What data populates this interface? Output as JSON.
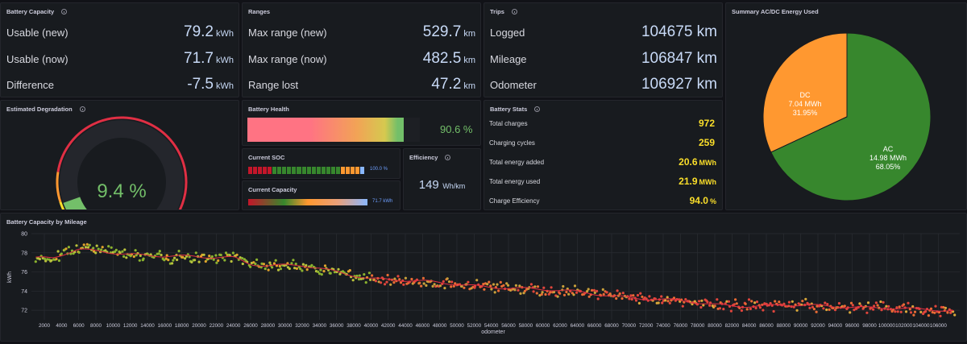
{
  "battery_capacity": {
    "title": "Battery Capacity",
    "rows": [
      {
        "label": "Usable (new)",
        "value": "79.2",
        "unit": "kWh"
      },
      {
        "label": "Usable (now)",
        "value": "71.7",
        "unit": "kWh"
      },
      {
        "label": "Difference",
        "value": "-7.5",
        "unit": "kWh"
      }
    ]
  },
  "ranges": {
    "title": "Ranges",
    "rows": [
      {
        "label": "Max range (new)",
        "value": "529.7",
        "unit": "km"
      },
      {
        "label": "Max range (now)",
        "value": "482.5",
        "unit": "km"
      },
      {
        "label": "Range lost",
        "value": "47.2",
        "unit": "km"
      }
    ]
  },
  "trips": {
    "title": "Trips",
    "rows": [
      {
        "label": "Logged",
        "value": "104675",
        "unit": "km"
      },
      {
        "label": "Mileage",
        "value": "106847",
        "unit": "km"
      },
      {
        "label": "Odometer",
        "value": "106927",
        "unit": "km"
      }
    ]
  },
  "summary": {
    "title": "Summary AC/DC Energy Used",
    "slices": [
      {
        "name": "DC",
        "energy": "7.04 MWh",
        "percent_label": "31.95%",
        "value": 31.95,
        "color": "#ff9830"
      },
      {
        "name": "AC",
        "energy": "14.98 MWh",
        "percent_label": "68.05%",
        "value": 68.05,
        "color": "#37872d"
      }
    ]
  },
  "degradation": {
    "title": "Estimated Degradation",
    "value_text": "9.4 %",
    "value": 9.4,
    "min": 0,
    "max": 100,
    "value_color": "#73bf69"
  },
  "battery_health": {
    "title": "Battery Health",
    "value_text": "90.6 %",
    "value": 90.6,
    "value_color": "#73bf69"
  },
  "current_soc": {
    "title": "Current SOC",
    "value_text": "100.0 %",
    "value": 100.0
  },
  "current_capacity": {
    "title": "Current Capacity",
    "value_text": "71.7 kWh",
    "value": 71.7
  },
  "efficiency": {
    "title": "Efficiency",
    "value": "149",
    "unit": "Wh/km"
  },
  "battery_stats": {
    "title": "Battery Stats",
    "rows": [
      {
        "label": "Total charges",
        "value": "972",
        "unit": ""
      },
      {
        "label": "Charging cycles",
        "value": "259",
        "unit": ""
      },
      {
        "label": "Total energy added",
        "value": "20.6",
        "unit": "MWh"
      },
      {
        "label": "Total energy used",
        "value": "21.9",
        "unit": "MWh"
      },
      {
        "label": "Charge Efficiency",
        "value": "94.0",
        "unit": "%"
      }
    ]
  },
  "chart_data": {
    "type": "scatter",
    "title": "Battery Capacity by Mileage",
    "xlabel": "odometer",
    "ylabel": "kWh",
    "xlim": [
      500,
      108500
    ],
    "ylim": [
      71,
      80
    ],
    "yticks": [
      72,
      74,
      76,
      78,
      80
    ],
    "xticks": [
      2000,
      4000,
      6000,
      8000,
      10000,
      12000,
      14000,
      16000,
      18000,
      20000,
      22000,
      24000,
      26000,
      28000,
      30000,
      32000,
      34000,
      36000,
      38000,
      40000,
      42000,
      44000,
      46000,
      48000,
      50000,
      52000,
      54000,
      56000,
      58000,
      60000,
      62000,
      64000,
      66000,
      68000,
      70000,
      72000,
      74000,
      76000,
      78000,
      80000,
      82000,
      84000,
      86000,
      88000,
      90000,
      92000,
      94000,
      96000,
      98000,
      100000,
      102000,
      104000,
      106000
    ],
    "grid": true,
    "trend_color": "#e02f44",
    "trend": {
      "x": [
        1000,
        3000,
        6000,
        9000,
        12000,
        16000,
        20000,
        24000,
        26000,
        28000,
        32000,
        36000,
        38000,
        40000,
        44000,
        48000,
        52000,
        56000,
        60000,
        64000,
        68000,
        72000,
        76000,
        80000,
        84000,
        88000,
        92000,
        96000,
        100000,
        104000,
        108000
      ],
      "y": [
        77.4,
        77.4,
        78.3,
        78.2,
        77.9,
        77.6,
        77.5,
        77.6,
        76.9,
        76.7,
        76.6,
        76.0,
        75.7,
        75.4,
        75.1,
        74.8,
        74.6,
        74.4,
        74.1,
        73.9,
        73.6,
        73.2,
        72.9,
        72.6,
        72.5,
        72.5,
        72.4,
        72.4,
        72.3,
        72.0,
        71.9
      ]
    }
  }
}
